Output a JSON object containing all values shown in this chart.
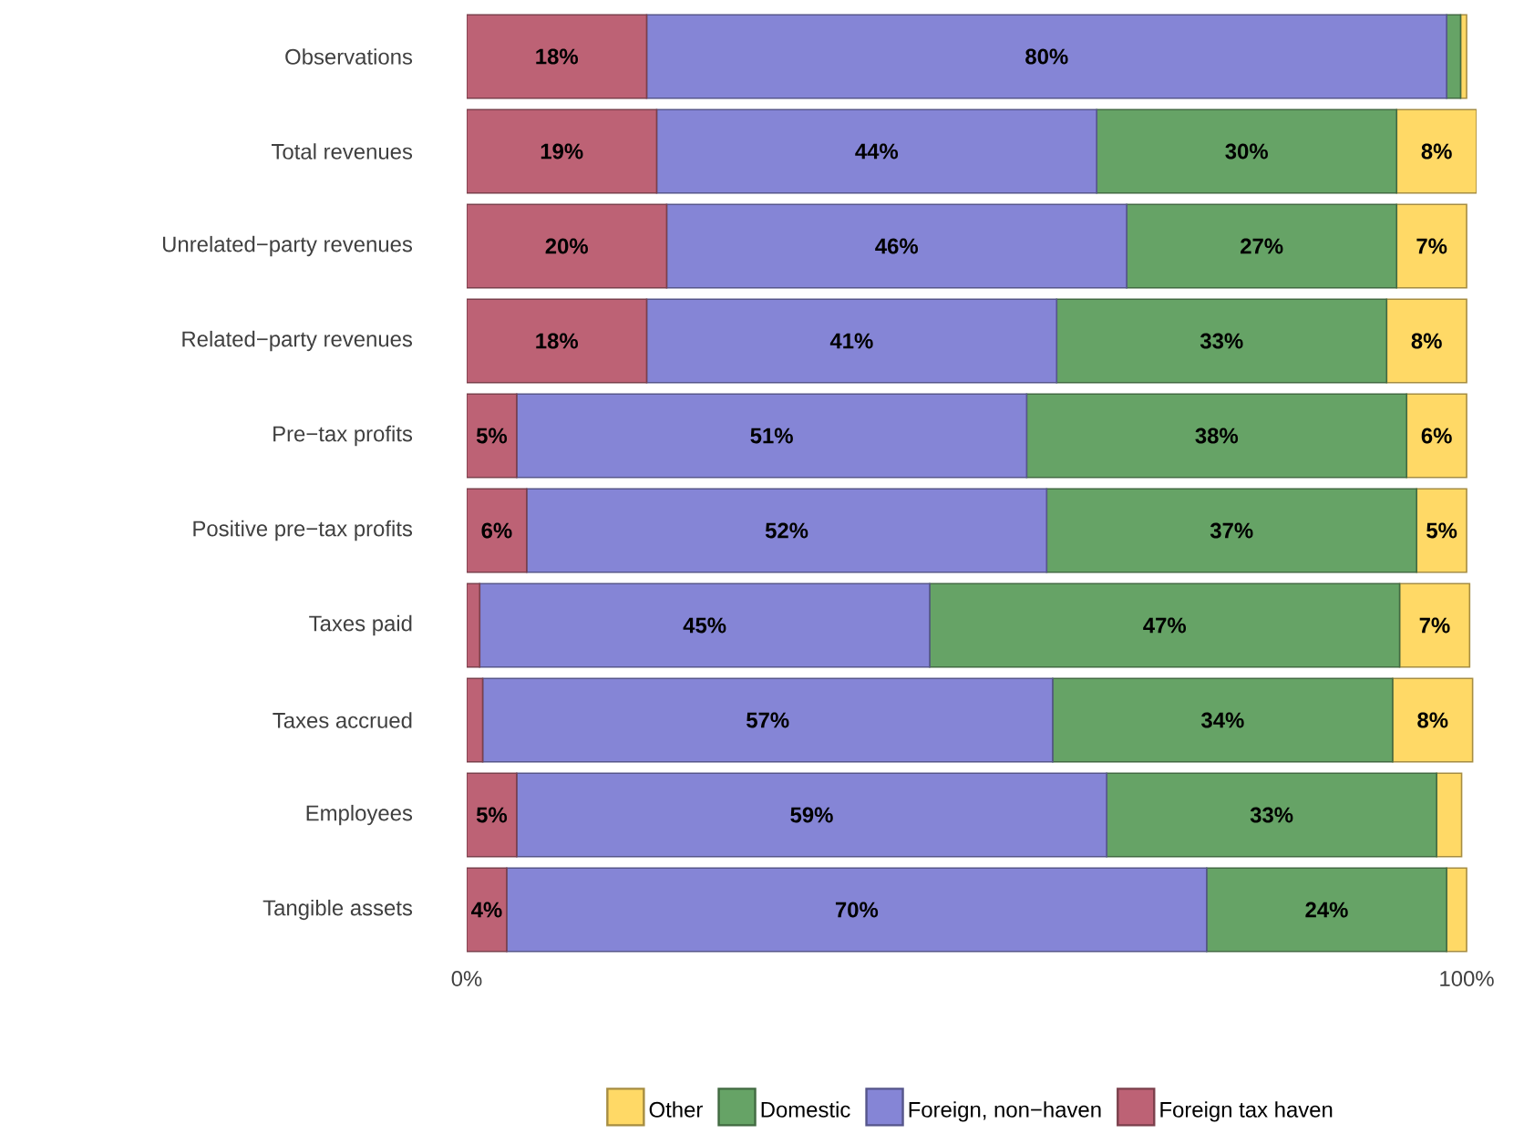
{
  "chart_data": {
    "type": "bar",
    "orientation": "horizontal",
    "stacked": true,
    "categories": [
      "Observations",
      "Total revenues",
      "Unrelated−party revenues",
      "Related−party revenues",
      "Pre−tax profits",
      "Positive pre−tax profits",
      "Taxes paid",
      "Taxes accrued",
      "Employees",
      "Tangible assets"
    ],
    "series": [
      {
        "name": "Foreign tax haven",
        "color": "#bd6275",
        "values": [
          18,
          19,
          20,
          18,
          5,
          6,
          1.3,
          1.6,
          5,
          4
        ],
        "value_labels": [
          "18%",
          "19%",
          "20%",
          "18%",
          "5%",
          "6%",
          null,
          null,
          "5%",
          "4%"
        ]
      },
      {
        "name": "Foreign, non−haven",
        "color": "#8585d6",
        "values": [
          80,
          44,
          46,
          41,
          51,
          52,
          45,
          57,
          59,
          70
        ],
        "value_labels": [
          "80%",
          "44%",
          "46%",
          "41%",
          "51%",
          "52%",
          "45%",
          "57%",
          "59%",
          "70%"
        ]
      },
      {
        "name": "Domestic",
        "color": "#66a366",
        "values": [
          1.4,
          30,
          27,
          33,
          38,
          37,
          47,
          34,
          33,
          24
        ],
        "value_labels": [
          null,
          "30%",
          "27%",
          "33%",
          "38%",
          "37%",
          "47%",
          "34%",
          "33%",
          "24%"
        ]
      },
      {
        "name": "Other",
        "color": "#ffd966",
        "values": [
          0.6,
          8,
          7,
          8,
          6,
          5,
          7,
          8,
          2.5,
          2
        ],
        "value_labels": [
          null,
          "8%",
          "7%",
          "8%",
          "6%",
          "5%",
          "7%",
          "8%",
          null,
          null
        ]
      }
    ],
    "xlim": [
      0,
      101
    ],
    "xticks": [
      {
        "value": 0,
        "label": "0%"
      },
      {
        "value": 100,
        "label": "100%"
      }
    ],
    "grid": false,
    "legend": "bottom"
  }
}
